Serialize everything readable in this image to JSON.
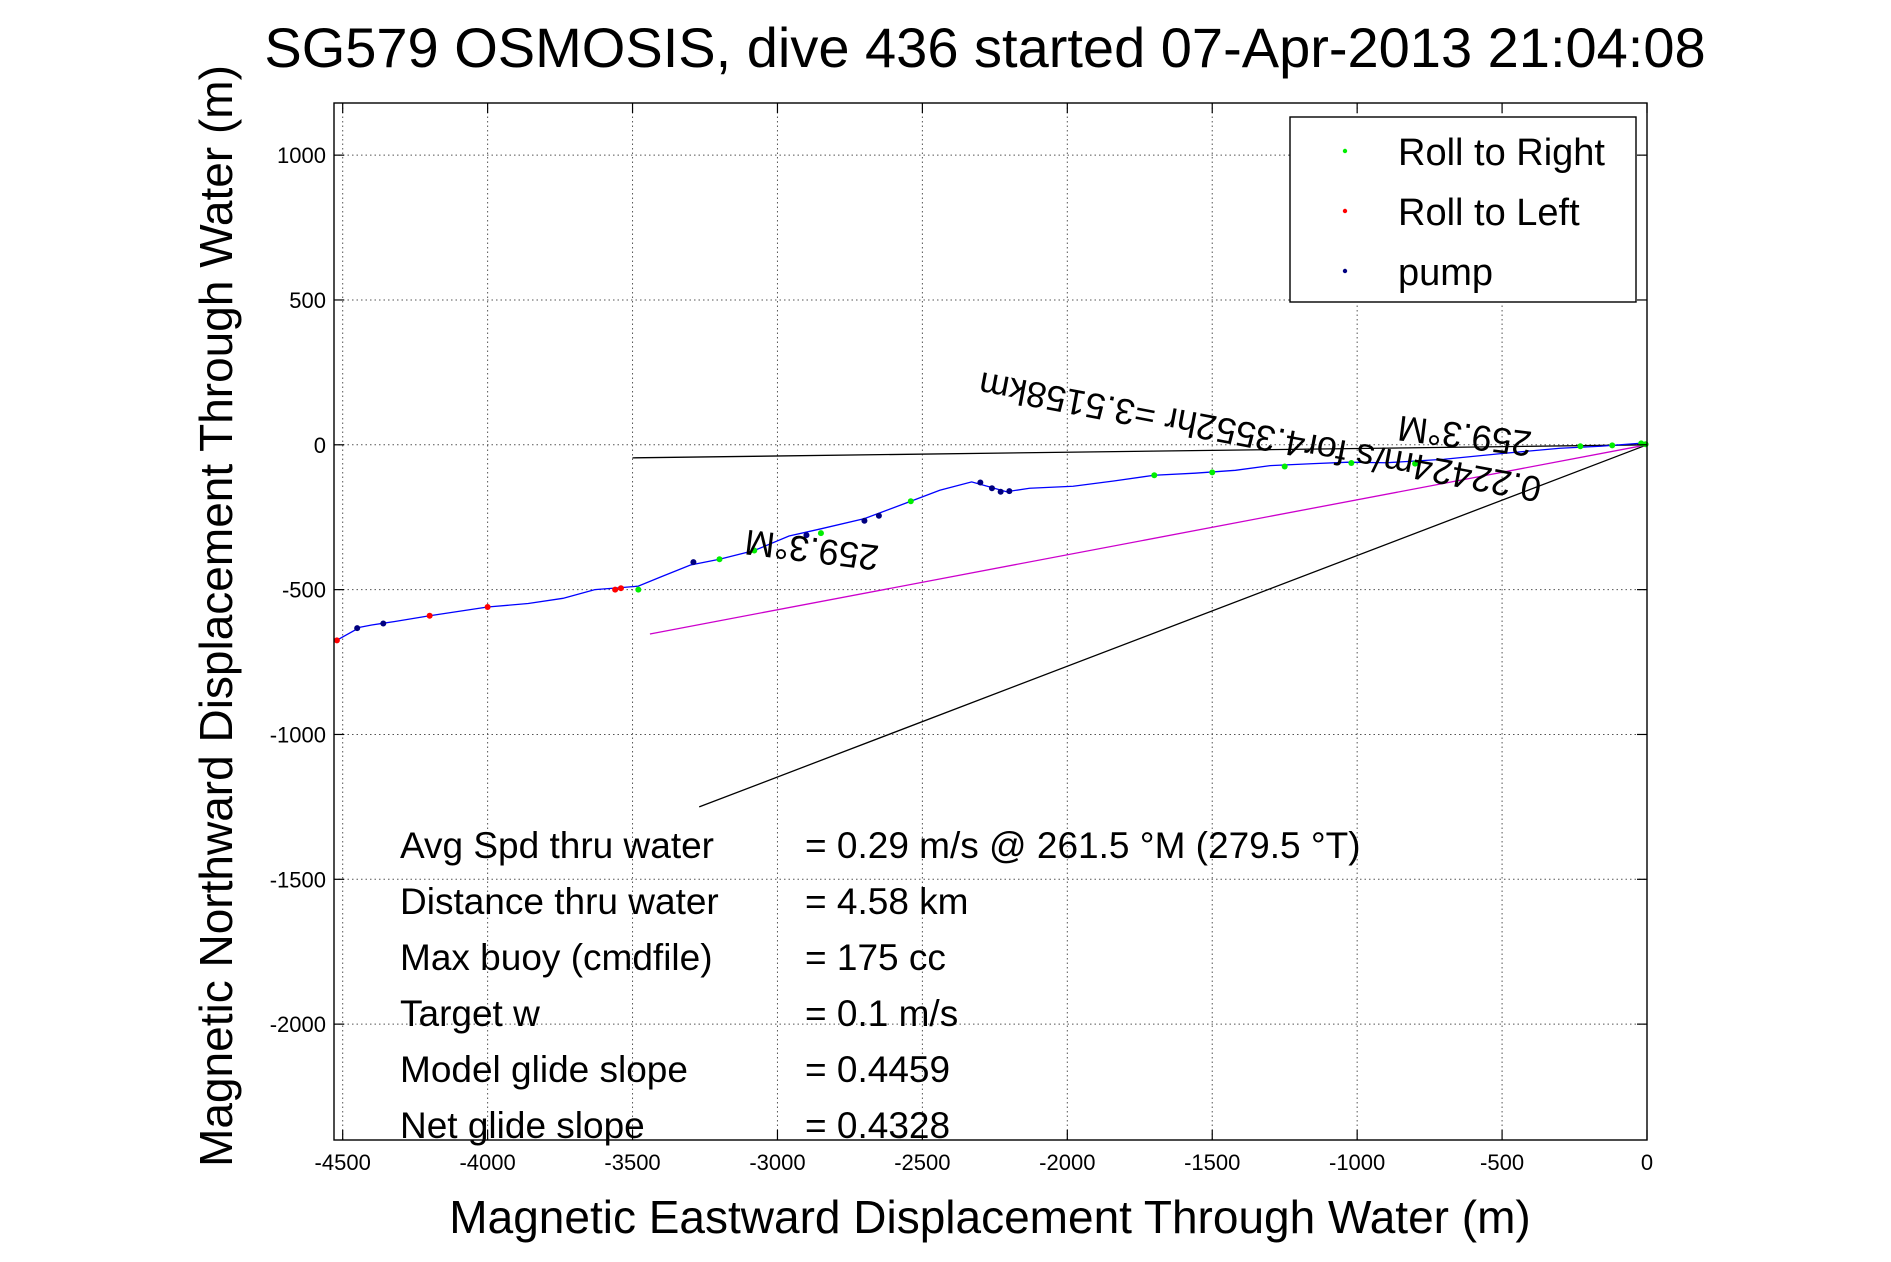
{
  "chart_data": {
    "type": "line",
    "title": "SG579 OSMOSIS, dive 436 started 07-Apr-2013 21:04:08",
    "xlabel": "Magnetic Eastward Displacement Through Water (m)",
    "ylabel": "Magnetic Northward Displacement Through Water (m)",
    "xlim": [
      -4530,
      0
    ],
    "ylim": [
      -2400,
      1180
    ],
    "xticks": [
      -4500,
      -4000,
      -3500,
      -3000,
      -2500,
      -2000,
      -1500,
      -1000,
      -500,
      0
    ],
    "yticks": [
      -2000,
      -1500,
      -1000,
      -500,
      0,
      500,
      1000
    ],
    "xtick_labels": [
      "-4500",
      "-4000",
      "-3500",
      "-3000",
      "-2500",
      "-2000",
      "-1500",
      "-1000",
      "-500",
      "0"
    ],
    "ytick_labels": [
      "-2000",
      "-1500",
      "-1000",
      "-500",
      "0",
      "500",
      "1000"
    ],
    "grid": true,
    "legend": {
      "placement": "top-right",
      "entries": [
        {
          "label": "Roll to Right",
          "color": "#00ee00"
        },
        {
          "label": "Roll to Left",
          "color": "#ff0000"
        },
        {
          "label": "pump",
          "color": "#000080"
        }
      ]
    },
    "track": {
      "color": "#0000ff",
      "x": [
        -4530,
        -4440,
        -4400,
        -4320,
        -4200,
        -4100,
        -4000,
        -3860,
        -3740,
        -3630,
        -3540,
        -3480,
        -3400,
        -3300,
        -3200,
        -3080,
        -2960,
        -2850,
        -2700,
        -2540,
        -2440,
        -2330,
        -2270,
        -2210,
        -2130,
        -1980,
        -1840,
        -1700,
        -1560,
        -1420,
        -1300,
        -1150,
        -1030,
        -900,
        -700,
        -500,
        -300,
        -160,
        -30,
        0
      ],
      "y": [
        -680,
        -630,
        -622,
        -610,
        -590,
        -575,
        -560,
        -548,
        -530,
        -500,
        -493,
        -488,
        -455,
        -415,
        -395,
        -365,
        -315,
        -290,
        -255,
        -195,
        -157,
        -128,
        -145,
        -162,
        -150,
        -143,
        -125,
        -105,
        -98,
        -88,
        -72,
        -65,
        -60,
        -62,
        -50,
        -30,
        -12,
        -5,
        5,
        0
      ]
    },
    "roll_right_points": {
      "x": [
        -3480,
        -3200,
        -3080,
        -2850,
        -2540,
        -1700,
        -1500,
        -1250,
        -1020,
        -800,
        -230,
        -120,
        -20,
        -5
      ],
      "y": [
        -500,
        -395,
        -365,
        -305,
        -195,
        -105,
        -95,
        -75,
        -63,
        -65,
        -5,
        -2,
        5,
        2
      ]
    },
    "roll_left_points": {
      "x": [
        -4520,
        -4200,
        -4000,
        -3560,
        -3540
      ],
      "y": [
        -675,
        -590,
        -560,
        -500,
        -495
      ]
    },
    "pump_points": {
      "x": [
        -4450,
        -4360,
        -3290,
        -2900,
        -2700,
        -2650,
        -2300,
        -2260,
        -2230,
        -2200
      ],
      "y": [
        -633,
        -617,
        -405,
        -312,
        -262,
        -245,
        -130,
        -150,
        -162,
        -160
      ]
    },
    "heading_line_1": {
      "color": "#000000",
      "x": [
        -3500,
        0
      ],
      "y": [
        -45,
        0
      ]
    },
    "net_line": {
      "color": "#cc00cc",
      "x": [
        -3440,
        0
      ],
      "y": [
        -653,
        0
      ]
    },
    "heading_line_2": {
      "color": "#000000",
      "x": [
        -3270,
        0
      ],
      "y": [
        -1250,
        0
      ]
    },
    "annotations": {
      "heading_1": "259.3°M",
      "heading_2": "259.3°M",
      "net_text": "0.22424m/s for4.3552hr =3.5158km"
    },
    "stats": [
      {
        "label": "Avg Spd thru water",
        "value": "=  0.29 m/s @ 261.5 °M (279.5 °T)"
      },
      {
        "label": "Distance thru water",
        "value": "=  4.58 km"
      },
      {
        "label": "Max buoy (cmdfile)",
        "value": "= 175 cc"
      },
      {
        "label": "Target w",
        "value": "= 0.1 m/s"
      },
      {
        "label": "Model glide slope",
        "value": "= 0.4459"
      },
      {
        "label": "Net glide slope",
        "value": "= 0.4328"
      }
    ]
  }
}
